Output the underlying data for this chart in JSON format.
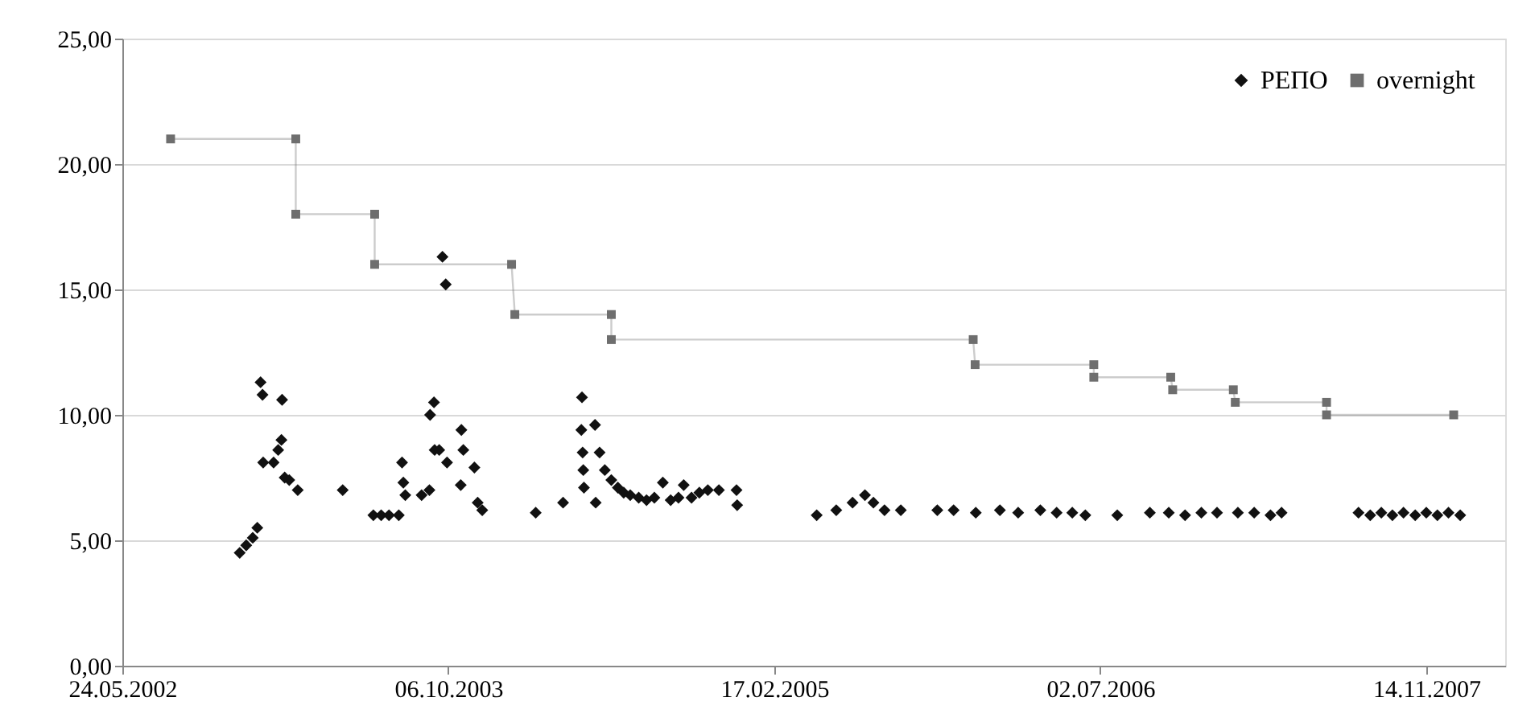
{
  "chart_data": {
    "type": "scatter",
    "xlim": [
      "2002-05-24",
      "2008-03-14"
    ],
    "xticks": [
      {
        "value": "2002-05-24",
        "label": "24.05.2002"
      },
      {
        "value": "2003-10-06",
        "label": "06.10.2003"
      },
      {
        "value": "2005-02-17",
        "label": "17.02.2005"
      },
      {
        "value": "2006-07-02",
        "label": "02.07.2006"
      },
      {
        "value": "2007-11-14",
        "label": "14.11.2007"
      }
    ],
    "ylim": [
      0,
      25
    ],
    "yticks": [
      {
        "value": 0,
        "label": "0,00"
      },
      {
        "value": 5,
        "label": "5,00"
      },
      {
        "value": 10,
        "label": "10,00"
      },
      {
        "value": 15,
        "label": "15,00"
      },
      {
        "value": 20,
        "label": "20,00"
      },
      {
        "value": 25,
        "label": "25,00"
      }
    ],
    "grid": "y",
    "legend": "top right",
    "series": [
      {
        "name": "РЕПО",
        "type": "scatter",
        "marker": "diamond",
        "color": "#111111",
        "x": [
          "2002-11-20",
          "2002-11-30",
          "2002-12-10",
          "2002-12-17",
          "2002-12-22",
          "2002-12-25",
          "2002-12-26",
          "2003-01-11",
          "2003-01-18",
          "2003-01-23",
          "2003-01-24",
          "2003-01-28",
          "2003-02-04",
          "2003-02-17",
          "2003-04-27",
          "2003-06-13",
          "2003-06-25",
          "2003-07-07",
          "2003-07-22",
          "2003-07-27",
          "2003-07-29",
          "2003-08-01",
          "2003-08-26",
          "2003-09-07",
          "2003-09-08",
          "2003-09-14",
          "2003-09-15",
          "2003-09-22",
          "2003-09-27",
          "2003-10-02",
          "2003-10-04",
          "2003-10-26",
          "2003-10-29",
          "2003-10-25",
          "2003-11-15",
          "2003-11-20",
          "2003-11-27",
          "2004-02-17",
          "2004-03-30",
          "2004-04-28",
          "2004-04-27",
          "2004-05-18",
          "2004-04-29",
          "2004-05-25",
          "2004-04-30",
          "2004-05-01",
          "2004-05-19",
          "2004-06-02",
          "2004-06-12",
          "2004-06-22",
          "2004-07-01",
          "2004-07-11",
          "2004-07-24",
          "2004-08-05",
          "2004-08-17",
          "2004-08-30",
          "2004-09-11",
          "2004-09-23",
          "2004-10-01",
          "2004-10-13",
          "2004-10-25",
          "2004-11-07",
          "2004-11-24",
          "2004-12-21",
          "2004-12-22",
          "2005-04-23",
          "2005-05-23",
          "2005-06-17",
          "2005-07-06",
          "2005-07-19",
          "2005-08-05",
          "2005-08-30",
          "2005-10-25",
          "2005-11-19",
          "2005-12-23",
          "2006-01-29",
          "2006-02-26",
          "2006-04-01",
          "2006-04-26",
          "2006-05-20",
          "2006-06-09",
          "2006-07-28",
          "2006-09-16",
          "2006-10-15",
          "2006-11-09",
          "2006-12-04",
          "2006-12-28",
          "2007-01-29",
          "2007-02-23",
          "2007-03-20",
          "2007-04-06",
          "2007-08-02",
          "2007-08-20",
          "2007-09-06",
          "2007-09-23",
          "2007-10-10",
          "2007-10-28",
          "2007-11-14",
          "2007-12-01",
          "2007-12-18",
          "2008-01-05"
        ],
        "values": [
          4.5,
          4.8,
          5.1,
          5.5,
          11.3,
          10.8,
          8.1,
          8.1,
          8.6,
          9.0,
          10.6,
          7.5,
          7.4,
          7.0,
          7.0,
          6.0,
          6.0,
          6.0,
          6.0,
          8.1,
          7.3,
          6.8,
          6.8,
          7.0,
          10.0,
          10.5,
          8.6,
          8.6,
          16.3,
          15.2,
          8.1,
          9.4,
          8.6,
          7.2,
          7.9,
          6.5,
          6.2,
          6.1,
          6.5,
          10.7,
          9.4,
          9.6,
          8.5,
          8.5,
          7.8,
          7.1,
          6.5,
          7.8,
          7.4,
          7.1,
          6.9,
          6.8,
          6.7,
          6.6,
          6.7,
          7.3,
          6.6,
          6.7,
          7.2,
          6.7,
          6.9,
          7.0,
          7.0,
          7.0,
          6.4,
          6.0,
          6.2,
          6.5,
          6.8,
          6.5,
          6.2,
          6.2,
          6.2,
          6.2,
          6.1,
          6.2,
          6.1,
          6.2,
          6.1,
          6.1,
          6.0,
          6.0,
          6.1,
          6.1,
          6.0,
          6.1,
          6.1,
          6.1,
          6.1,
          6.0,
          6.1,
          6.1,
          6.0,
          6.1,
          6.0,
          6.1,
          6.0,
          6.1,
          6.0,
          6.1,
          6.0
        ]
      },
      {
        "name": "overnight",
        "type": "line",
        "marker": "square",
        "color": "#6e6e6e",
        "x": [
          "2002-08-06",
          "2003-02-14",
          "2003-02-14",
          "2003-06-15",
          "2003-06-15",
          "2004-01-11",
          "2004-01-16",
          "2004-06-12",
          "2004-06-12",
          "2005-12-19",
          "2005-12-22",
          "2006-06-22",
          "2006-06-22",
          "2006-10-18",
          "2006-10-21",
          "2007-01-22",
          "2007-01-25",
          "2007-06-14",
          "2007-06-14",
          "2007-12-26"
        ],
        "values": [
          21,
          21,
          18,
          18,
          16,
          16,
          14,
          14,
          13,
          13,
          12,
          12,
          11.5,
          11.5,
          11,
          11,
          10.5,
          10.5,
          10,
          10
        ]
      }
    ]
  }
}
